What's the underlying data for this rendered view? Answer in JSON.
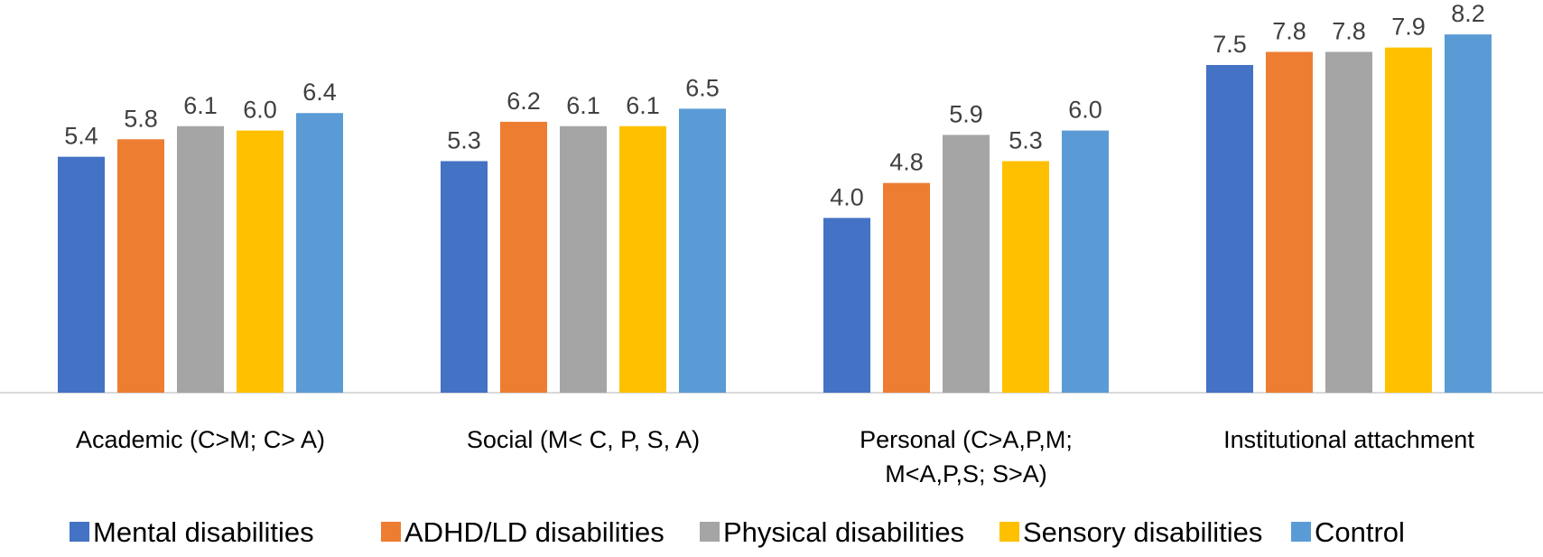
{
  "chart_data": {
    "type": "bar",
    "title": "",
    "xlabel": "",
    "ylabel": "",
    "ylim": [
      0,
      9.3
    ],
    "grid": false,
    "legend_position": "bottom",
    "categories": [
      [
        "Academic  (C>M; C> A)"
      ],
      [
        "Social (M< C, P, S, A)"
      ],
      [
        "Personal (C>A,P,M;",
        "M<A,P,S; S>A)"
      ],
      [
        "Institutional attachment"
      ]
    ],
    "series": [
      {
        "name": "Mental disabilities",
        "color": "#4472C4",
        "values": [
          5.4,
          5.3,
          4.0,
          7.5
        ],
        "labels": [
          "5.4",
          "5.3",
          "4.0",
          "7.5"
        ]
      },
      {
        "name": "ADHD/LD disabilities",
        "color": "#ED7D31",
        "values": [
          5.8,
          6.2,
          4.8,
          7.8
        ],
        "labels": [
          "5.8",
          "6.2",
          "4.8",
          "7.8"
        ]
      },
      {
        "name": "Physical disabilities",
        "color": "#A5A5A5",
        "values": [
          6.1,
          6.1,
          5.9,
          7.8
        ],
        "labels": [
          "6.1",
          "6.1",
          "5.9",
          "7.8"
        ]
      },
      {
        "name": "Sensory disabilities",
        "color": "#FFC000",
        "values": [
          6.0,
          6.1,
          5.3,
          7.9
        ],
        "labels": [
          "6.0",
          "6.1",
          "5.3",
          "7.9"
        ]
      },
      {
        "name": "Control",
        "color": "#5B9BD5",
        "values": [
          6.4,
          6.5,
          6.0,
          8.2
        ],
        "labels": [
          "6.4",
          "6.5",
          "6.0",
          "8.2"
        ]
      }
    ]
  }
}
